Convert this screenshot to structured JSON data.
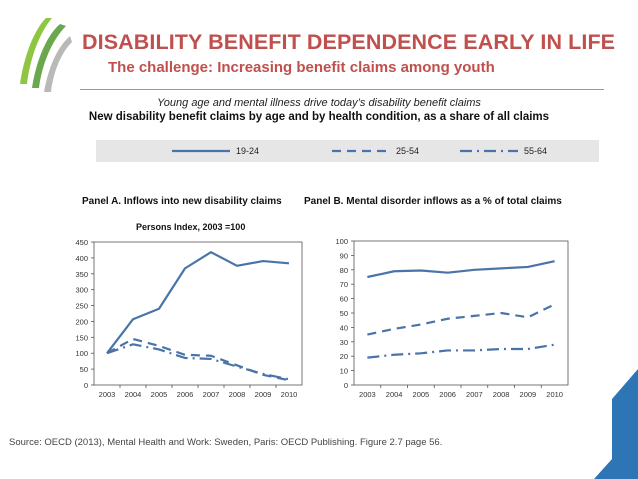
{
  "header": {
    "title": "DISABILITY BENEFIT DEPENDENCE EARLY IN LIFE",
    "subtitle": "The challenge: Increasing benefit claims among youth"
  },
  "figure": {
    "subtitle": "Young age and mental illness drive today’s disability benefit claims",
    "title": "New disability benefit claims by age and by health condition, as a share of all claims"
  },
  "legend": [
    {
      "label": "19-24",
      "style": "solid"
    },
    {
      "label": "25-54",
      "style": "dashed"
    },
    {
      "label": "55-64",
      "style": "dashdot"
    }
  ],
  "colors": {
    "series": "#4a74a8",
    "title": "#c0504d",
    "arrow": "#2e75b6"
  },
  "source": "Source: OECD (2013), Mental Health and Work: Sweden, Paris: OECD Publishing. Figure 2.7 page 56.",
  "chart_data": [
    {
      "type": "line",
      "title": "Panel A. Inflows into new disability claims",
      "subtitle": "Persons Index, 2003 =100",
      "x": [
        2003,
        2004,
        2005,
        2006,
        2007,
        2008,
        2009,
        2010
      ],
      "ylim": [
        0,
        450
      ],
      "yticks": [
        0,
        50,
        100,
        150,
        200,
        250,
        300,
        350,
        400,
        450
      ],
      "grid": false,
      "series": [
        {
          "name": "19-24",
          "style": "solid",
          "values": [
            100,
            207,
            240,
            367,
            418,
            375,
            390,
            383
          ]
        },
        {
          "name": "25-54",
          "style": "dashed",
          "values": [
            100,
            145,
            123,
            95,
            92,
            62,
            32,
            15
          ]
        },
        {
          "name": "55-64",
          "style": "dashdot",
          "values": [
            100,
            128,
            112,
            85,
            82,
            58,
            35,
            18
          ]
        }
      ]
    },
    {
      "type": "line",
      "title": "Panel B.  Mental disorder inflows as a % of total claims",
      "x": [
        2003,
        2004,
        2005,
        2006,
        2007,
        2008,
        2009,
        2010
      ],
      "ylim": [
        0,
        100
      ],
      "yticks": [
        0,
        10,
        20,
        30,
        40,
        50,
        60,
        70,
        80,
        90,
        100
      ],
      "grid": false,
      "series": [
        {
          "name": "19-24",
          "style": "solid",
          "values": [
            75,
            79,
            79.5,
            78,
            80,
            81,
            82,
            86
          ]
        },
        {
          "name": "25-54",
          "style": "dashed",
          "values": [
            35,
            39,
            42,
            46,
            48,
            50,
            47,
            56
          ]
        },
        {
          "name": "55-64",
          "style": "dashdot",
          "values": [
            19,
            21,
            22,
            24,
            24,
            25,
            25,
            28
          ]
        }
      ]
    }
  ]
}
